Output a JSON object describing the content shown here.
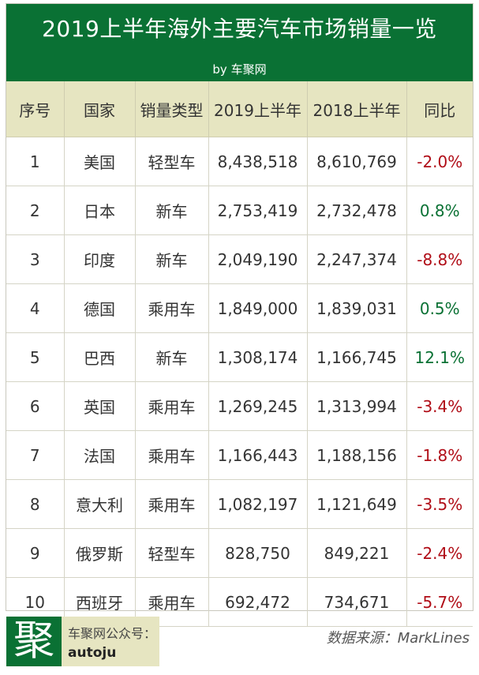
{
  "header": {
    "title": "2019上半年海外主要汽车市场销量一览",
    "byline": "by 车聚网"
  },
  "chart_data": {
    "type": "table",
    "title": "2019上半年海外主要汽车市场销量一览",
    "columns": [
      "序号",
      "国家",
      "销量类型",
      "2019上半年",
      "2018上半年",
      "同比"
    ],
    "rows": [
      [
        "1",
        "美国",
        "轻型车",
        "8,438,518",
        "8,610,769",
        "-2.0%"
      ],
      [
        "2",
        "日本",
        "新车",
        "2,753,419",
        "2,732,478",
        "0.8%"
      ],
      [
        "3",
        "印度",
        "新车",
        "2,049,190",
        "2,247,374",
        "-8.8%"
      ],
      [
        "4",
        "德国",
        "乘用车",
        "1,849,000",
        "1,839,031",
        "0.5%"
      ],
      [
        "5",
        "巴西",
        "新车",
        "1,308,174",
        "1,166,745",
        "12.1%"
      ],
      [
        "6",
        "英国",
        "乘用车",
        "1,269,245",
        "1,313,994",
        "-3.4%"
      ],
      [
        "7",
        "法国",
        "乘用车",
        "1,166,443",
        "1,188,156",
        "-1.8%"
      ],
      [
        "8",
        "意大利",
        "乘用车",
        "1,082,197",
        "1,121,649",
        "-3.5%"
      ],
      [
        "9",
        "俄罗斯",
        "轻型车",
        "828,750",
        "849,221",
        "-2.4%"
      ],
      [
        "10",
        "西班牙",
        "乘用车",
        "692,472",
        "734,671",
        "-5.7%"
      ]
    ]
  },
  "footer": {
    "logo_char": "聚",
    "wechat_label": "车聚网公众号：",
    "wechat_id": "autoju",
    "source": "数据来源：MarkLines"
  },
  "colors": {
    "brand_green": "#0a7134",
    "header_beige": "#e6e5c1",
    "negative_red": "#b00d17",
    "positive_green": "#0a7134"
  }
}
